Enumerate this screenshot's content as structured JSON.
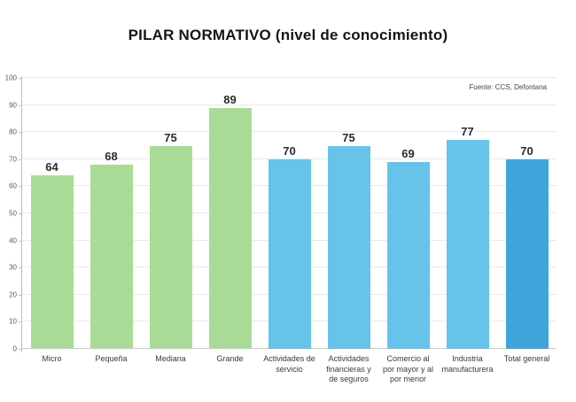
{
  "header": {
    "title": "PILAR NORMATIVO (nivel de conocimiento)"
  },
  "source": {
    "label": "Fuente: CCS, Defontana"
  },
  "chart_data": {
    "type": "bar",
    "title": "PILAR NORMATIVO (nivel de conocimiento)",
    "source_note": "Fuente: CCS, Defontana",
    "categories": [
      "Micro",
      "Pequeña",
      "Mediana",
      "Grande",
      "Actividades de\nservicio",
      "Actividades\nfinancieras y\nde seguros",
      "Comercio al\npor mayor y al\npor menor",
      "Industria\nmanufacturera",
      "Total general"
    ],
    "values": [
      64,
      68,
      75,
      89,
      70,
      75,
      69,
      77,
      70
    ],
    "bar_colors": [
      "#a9db97",
      "#a9db97",
      "#a9db97",
      "#a9db97",
      "#66c3ea",
      "#66c3ea",
      "#66c3ea",
      "#66c3ea",
      "#3fa5db"
    ],
    "xlabel": "",
    "ylabel": "",
    "ylim": [
      0,
      100
    ],
    "yticks": [
      0,
      10,
      20,
      30,
      40,
      50,
      60,
      70,
      80,
      90,
      100
    ],
    "grid": true,
    "legend_position": "none",
    "value_labels_shown": true
  }
}
